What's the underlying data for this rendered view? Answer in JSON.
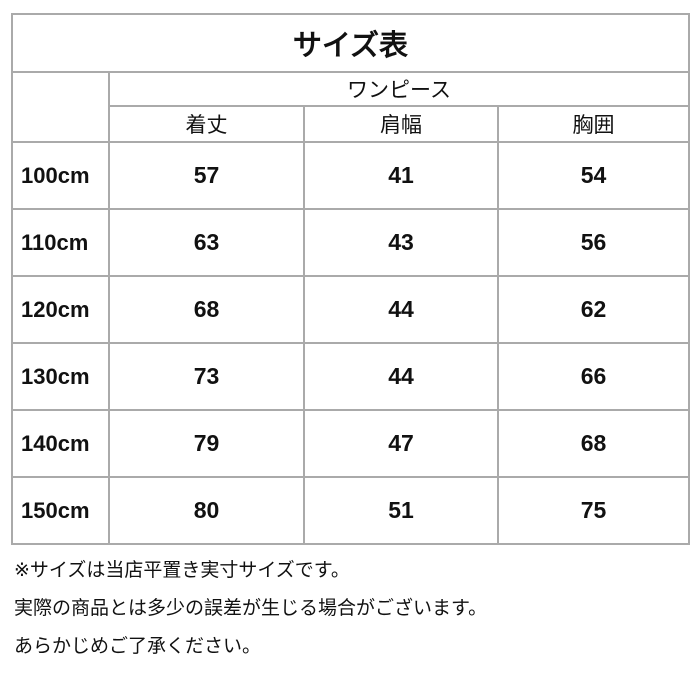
{
  "title": "サイズ表",
  "group_header": "ワンピース",
  "columns": [
    "着丈",
    "肩幅",
    "胸囲"
  ],
  "rows": [
    {
      "size": "100cm",
      "values": [
        "57",
        "41",
        "54"
      ]
    },
    {
      "size": "110cm",
      "values": [
        "63",
        "43",
        "56"
      ]
    },
    {
      "size": "120cm",
      "values": [
        "68",
        "44",
        "62"
      ]
    },
    {
      "size": "130cm",
      "values": [
        "73",
        "44",
        "66"
      ]
    },
    {
      "size": "140cm",
      "values": [
        "79",
        "47",
        "68"
      ]
    },
    {
      "size": "150cm",
      "values": [
        "80",
        "51",
        "75"
      ]
    }
  ],
  "notes": [
    "※サイズは当店平置き実寸サイズです。",
    "実際の商品とは多少の誤差が生じる場合がございます。",
    "あらかじめご了承ください。"
  ]
}
